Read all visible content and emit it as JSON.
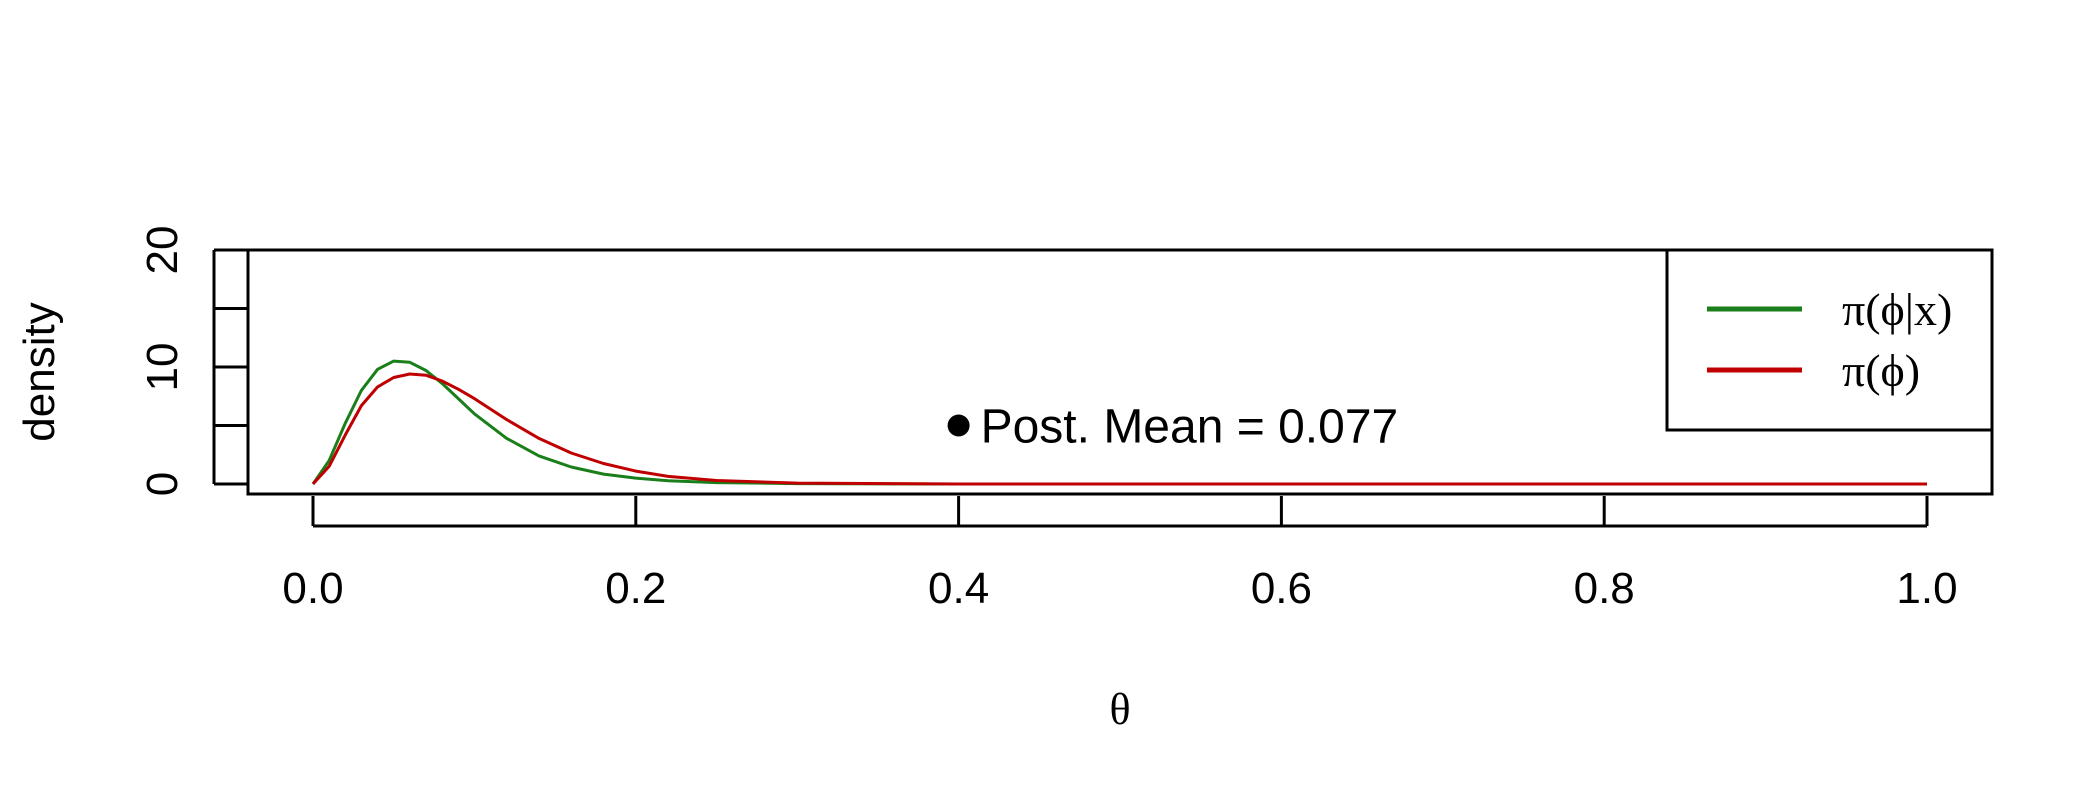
{
  "chart_data": {
    "type": "line",
    "xlabel": "θ",
    "ylabel": "density",
    "xlim": [
      0,
      1
    ],
    "ylim": [
      0,
      20
    ],
    "x_ticks": [
      0.0,
      0.2,
      0.4,
      0.6,
      0.8,
      1.0
    ],
    "x_tick_labels": [
      "0.0",
      "0.2",
      "0.4",
      "0.6",
      "0.8",
      "1.0"
    ],
    "y_ticks": [
      0,
      5,
      10,
      15,
      20
    ],
    "y_tick_labels": [
      "0",
      "",
      "10",
      "",
      "20"
    ],
    "grid": false,
    "legend": {
      "placement": "top-right"
    },
    "series": [
      {
        "name": "π(ϕ|x)",
        "color": "#1a7f1a",
        "x": [
          0,
          0.01,
          0.02,
          0.03,
          0.04,
          0.05,
          0.06,
          0.07,
          0.08,
          0.09,
          0.1,
          0.12,
          0.14,
          0.16,
          0.18,
          0.2,
          0.22,
          0.25,
          0.3,
          0.4,
          0.5,
          0.6,
          0.7,
          0.8,
          0.9,
          1.0
        ],
        "y": [
          0,
          2.0,
          5.2,
          8.0,
          9.8,
          10.5,
          10.4,
          9.7,
          8.6,
          7.3,
          6.0,
          3.9,
          2.4,
          1.45,
          0.85,
          0.5,
          0.28,
          0.12,
          0.03,
          0,
          0,
          0,
          0,
          0,
          0,
          0
        ]
      },
      {
        "name": "π(ϕ)",
        "color": "#c00000",
        "x": [
          0,
          0.01,
          0.02,
          0.03,
          0.04,
          0.05,
          0.06,
          0.07,
          0.08,
          0.09,
          0.1,
          0.12,
          0.14,
          0.16,
          0.18,
          0.2,
          0.22,
          0.25,
          0.3,
          0.4,
          0.5,
          0.6,
          0.7,
          0.8,
          0.9,
          1.0
        ],
        "y": [
          0,
          1.5,
          4.2,
          6.7,
          8.3,
          9.1,
          9.4,
          9.3,
          8.8,
          8.1,
          7.3,
          5.5,
          3.9,
          2.65,
          1.75,
          1.1,
          0.65,
          0.3,
          0.08,
          0,
          0,
          0,
          0,
          0,
          0,
          0
        ]
      }
    ],
    "annotations": [
      {
        "x": 0.4,
        "y": 5,
        "marker": "filled-circle",
        "text": "Post. Mean =  0.077"
      }
    ]
  }
}
